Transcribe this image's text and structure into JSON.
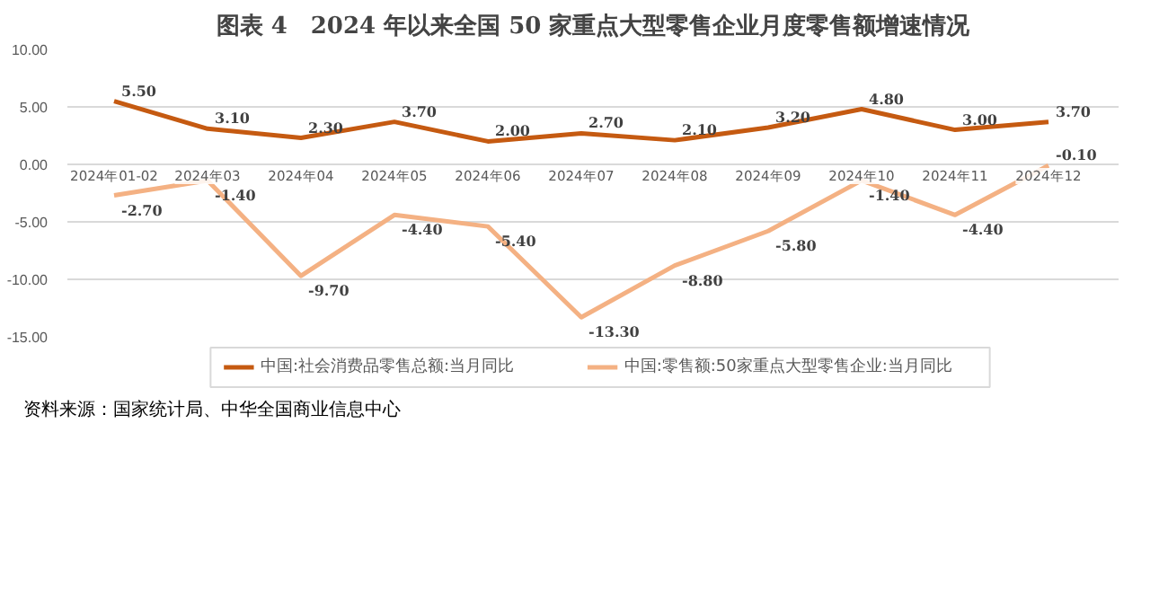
{
  "chart_data": {
    "type": "line",
    "title": "图表 4　2024 年以来全国 50 家重点大型零售企业月度零售额增速情况",
    "categories": [
      "2024年01-02",
      "2024年03",
      "2024年04",
      "2024年05",
      "2024年06",
      "2024年07",
      "2024年08",
      "2024年09",
      "2024年10",
      "2024年11",
      "2024年12"
    ],
    "series": [
      {
        "name": "中国:社会消费品零售总额:当月同比",
        "color": "#c55a11",
        "values": [
          5.5,
          3.1,
          2.3,
          3.7,
          2.0,
          2.7,
          2.1,
          3.2,
          4.8,
          3.0,
          3.7
        ],
        "value_labels": [
          "5.50",
          "3.10",
          "2.30",
          "3.70",
          "2.00",
          "2.70",
          "2.10",
          "3.20",
          "4.80",
          "3.00",
          "3.70"
        ]
      },
      {
        "name": "中国:零售额:50家重点大型零售企业:当月同比",
        "color": "#f4b183",
        "values": [
          -2.7,
          -1.4,
          -9.7,
          -4.4,
          -5.4,
          -13.3,
          -8.8,
          -5.8,
          -1.4,
          -4.4,
          -0.1
        ],
        "value_labels": [
          "-2.70",
          "-1.40",
          "-9.70",
          "-4.40",
          "-5.40",
          "-13.30",
          "-8.80",
          "-5.80",
          "-1.40",
          "-4.40",
          "-0.10"
        ]
      }
    ],
    "ylim": [
      -15,
      10
    ],
    "yticks": [
      {
        "value": -15,
        "label": "-15.00"
      },
      {
        "value": -10,
        "label": "-10.00"
      },
      {
        "value": -5,
        "label": "-5.00"
      },
      {
        "value": 0,
        "label": "0.00"
      },
      {
        "value": 5,
        "label": "5.00"
      },
      {
        "value": 10,
        "label": "10.00"
      }
    ],
    "grid": "y",
    "legend": "bottom",
    "marker": "none",
    "line_style": "solid",
    "annotations": [
      "资料来源：国家统计局、中华全国商业信息中心"
    ]
  }
}
